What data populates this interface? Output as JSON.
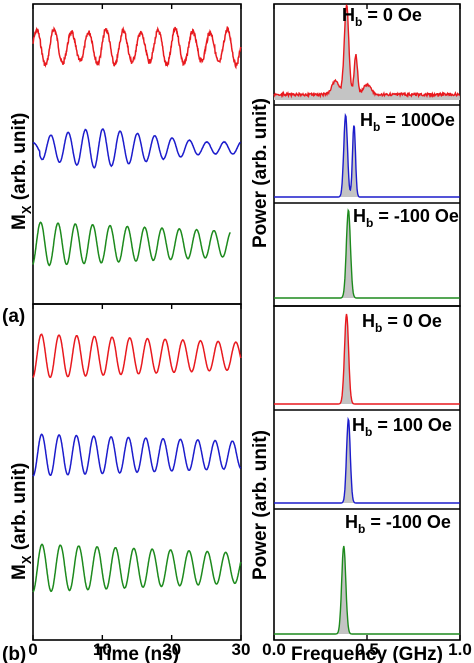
{
  "figure": {
    "panel_labels": [
      "(a)",
      "(b)"
    ],
    "left_ylabel": "M",
    "left_ylabel_sub": "X",
    "left_ylabel_rest": " (arb. unit)",
    "right_ylabel": "Power (arb. unit)",
    "left_xlabel": "Time (ns)",
    "right_xlabel": "Frequency (GHz)"
  },
  "colors": {
    "red": "#e8191e",
    "blue": "#1c1ccc",
    "green": "#1d8a1d",
    "fill": "#c4c4c4"
  },
  "chart_data": [
    {
      "type": "line",
      "panel": "(a) time domain",
      "xlabel": "Time (ns)",
      "ylabel": "Mx (arb. unit)",
      "xlim": [
        0,
        30
      ],
      "xticks": [
        0,
        10,
        20,
        30
      ],
      "grid": false,
      "series": [
        {
          "color": "red",
          "period_ns": 2.5,
          "t_end": 30,
          "amplitude": "noisy, roughly constant"
        },
        {
          "color": "blue",
          "period_ns": 2.5,
          "t_end": 30,
          "amplitude": "grows to max near 10 ns, then beats and decays"
        },
        {
          "color": "green",
          "period_ns": 2.5,
          "t_end": 28.5,
          "amplitude": "slowly decaying"
        }
      ]
    },
    {
      "type": "line",
      "panel": "(b) time domain",
      "xlabel": "Time (ns)",
      "ylabel": "Mx (arb. unit)",
      "xlim": [
        0,
        30
      ],
      "xticks": [
        0,
        10,
        20,
        30
      ],
      "grid": false,
      "series": [
        {
          "color": "red",
          "period_ns": 2.55,
          "t_end": 30,
          "amplitude": "slowly decaying"
        },
        {
          "color": "blue",
          "period_ns": 2.5,
          "t_end": 30,
          "amplitude": "slowly decaying"
        },
        {
          "color": "green",
          "period_ns": 2.65,
          "t_end": 30,
          "amplitude": "slowly decaying"
        }
      ]
    },
    {
      "type": "area",
      "panel": "(a) frequency domain",
      "xlabel": "Frequency (GHz)",
      "ylabel": "Power (arb. unit)",
      "xlim": [
        0,
        1.0
      ],
      "xticks": [
        0.0,
        0.5,
        1.0
      ],
      "subpanels": [
        {
          "label_main": "H",
          "label_sub": "b",
          "label_rest": " = 0 Oe",
          "color": "red",
          "peaks_GHz": [
            0.39,
            0.44
          ],
          "noisy_baseline": true
        },
        {
          "label_main": "H",
          "label_sub": "b",
          "label_rest": " = 100Oe",
          "color": "blue",
          "peaks_GHz": [
            0.385,
            0.43
          ],
          "noisy_baseline": false
        },
        {
          "label_main": "H",
          "label_sub": "b",
          "label_rest": " = -100 Oe",
          "color": "green",
          "peaks_GHz": [
            0.4
          ],
          "noisy_baseline": false
        }
      ]
    },
    {
      "type": "area",
      "panel": "(b) frequency domain",
      "xlabel": "Frequency (GHz)",
      "ylabel": "Power (arb. unit)",
      "xlim": [
        0,
        1.0
      ],
      "xticks": [
        0.0,
        0.5,
        1.0
      ],
      "subpanels": [
        {
          "label_main": "H",
          "label_sub": "b",
          "label_rest": " = 0 Oe",
          "color": "red",
          "peaks_GHz": [
            0.39
          ],
          "noisy_baseline": false
        },
        {
          "label_main": "H",
          "label_sub": "b",
          "label_rest": " = 100 Oe",
          "color": "blue",
          "peaks_GHz": [
            0.4
          ],
          "noisy_baseline": false
        },
        {
          "label_main": "H",
          "label_sub": "b",
          "label_rest": " = -100 Oe",
          "color": "green",
          "peaks_GHz": [
            0.375
          ],
          "noisy_baseline": false
        }
      ]
    }
  ]
}
